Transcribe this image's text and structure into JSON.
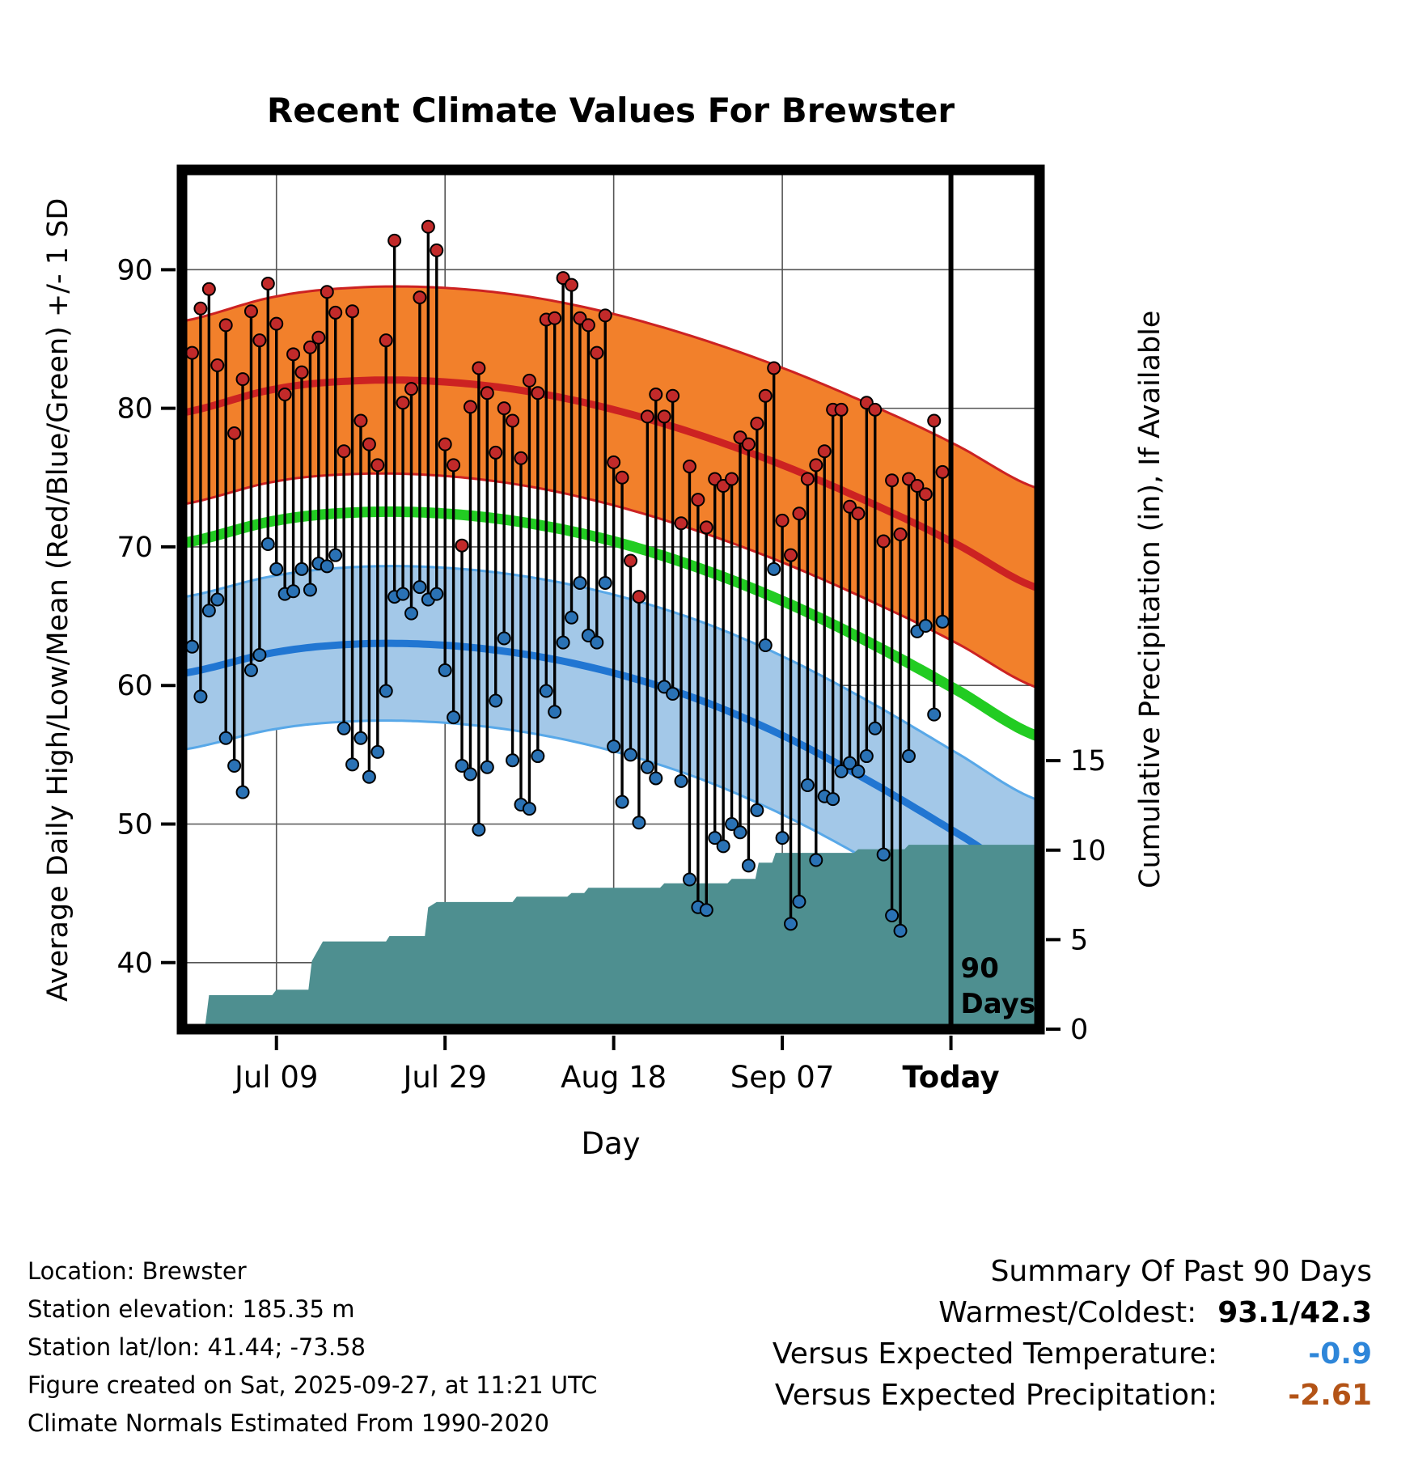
{
  "title": "Recent Climate Values For Brewster",
  "axes": {
    "x_label": "Day",
    "y_left_label": "Average Daily High/Low/Mean (Red/Blue/Green) +/- 1 SD",
    "y_right_label": "Cumulative Precipitation (in), If Available"
  },
  "chart_data": {
    "type": "line",
    "description": "Daily observed high/low temperature whiskers over climate-normal bands (high/low/mean +/- 1 SD) plus cumulative precipitation area for the past 90 days",
    "xlim": [
      -1.2,
      100.5
    ],
    "ylim_temp": [
      35.2,
      97.2
    ],
    "ylim_precip": [
      0,
      48
    ],
    "x_start_date": "2025-06-29",
    "x_ticks": [
      {
        "day": 10,
        "label": "Jul 09",
        "bold": false
      },
      {
        "day": 30,
        "label": "Jul 29",
        "bold": false
      },
      {
        "day": 50,
        "label": "Aug 18",
        "bold": false
      },
      {
        "day": 70,
        "label": "Sep 07",
        "bold": false
      },
      {
        "day": 90,
        "label": "Today",
        "bold": true
      }
    ],
    "y_ticks_temp": [
      90,
      80,
      70,
      60,
      50,
      40
    ],
    "y_ticks_precip": [
      0,
      5,
      10,
      15
    ],
    "marker": {
      "day": 90,
      "label_lines": [
        "90",
        "Days"
      ]
    },
    "normals": {
      "high": {
        "line_color": "#CC2222",
        "band_fill": "#F2802B",
        "band_edge": "#CC2222",
        "half_width": [
          6.6,
          7.2
        ],
        "knots": [
          [
            -2,
            79.6
          ],
          [
            10,
            81.4
          ],
          [
            20,
            82.0
          ],
          [
            30,
            81.9
          ],
          [
            40,
            81.2
          ],
          [
            50,
            79.9
          ],
          [
            60,
            78.1
          ],
          [
            70,
            75.9
          ],
          [
            80,
            73.3
          ],
          [
            90,
            70.4
          ],
          [
            101,
            66.9
          ]
        ]
      },
      "mean": {
        "line_color": "#22CC22",
        "knots": [
          [
            -2,
            70.2
          ],
          [
            10,
            71.9
          ],
          [
            20,
            72.5
          ],
          [
            30,
            72.4
          ],
          [
            40,
            71.7
          ],
          [
            50,
            70.4
          ],
          [
            60,
            68.5
          ],
          [
            70,
            66.1
          ],
          [
            80,
            63.2
          ],
          [
            90,
            59.9
          ],
          [
            101,
            56.2
          ]
        ]
      },
      "low": {
        "line_color": "#2176D2",
        "band_fill": "#A3C8E8",
        "band_edge": "#58A8E8",
        "half_width": [
          5.5,
          5.8
        ],
        "knots": [
          [
            -2,
            60.8
          ],
          [
            10,
            62.4
          ],
          [
            20,
            63.0
          ],
          [
            30,
            62.9
          ],
          [
            40,
            62.2
          ],
          [
            50,
            60.9
          ],
          [
            60,
            59.0
          ],
          [
            70,
            56.4
          ],
          [
            80,
            53.2
          ],
          [
            90,
            49.6
          ],
          [
            101,
            45.8
          ]
        ]
      }
    },
    "daily": {
      "highs": [
        84.0,
        87.2,
        88.6,
        83.1,
        86.0,
        78.2,
        82.1,
        87.0,
        84.9,
        89.0,
        86.1,
        81.0,
        83.9,
        82.6,
        84.4,
        85.1,
        88.4,
        86.9,
        76.9,
        87.0,
        79.1,
        77.4,
        75.9,
        84.9,
        92.1,
        80.4,
        81.4,
        88.0,
        93.1,
        91.4,
        77.4,
        75.9,
        70.1,
        80.1,
        82.9,
        81.1,
        76.8,
        80.0,
        79.1,
        76.4,
        82.0,
        81.1,
        86.4,
        86.5,
        89.4,
        88.9,
        86.5,
        86.0,
        84.0,
        86.7,
        76.1,
        75.0,
        69.0,
        66.4,
        79.4,
        81.0,
        79.4,
        80.9,
        71.7,
        75.8,
        73.4,
        71.4,
        74.9,
        74.4,
        74.9,
        77.9,
        77.4,
        78.9,
        80.9,
        82.9,
        71.9,
        69.4,
        72.4,
        74.9,
        75.9,
        76.9,
        79.9,
        79.9,
        72.9,
        72.4,
        80.4,
        79.9,
        70.4,
        74.8,
        70.9,
        74.9,
        74.4,
        73.8,
        79.1,
        75.4
      ],
      "lows": [
        62.8,
        59.2,
        65.4,
        66.2,
        56.2,
        54.2,
        52.3,
        61.1,
        62.2,
        70.2,
        68.4,
        66.6,
        66.8,
        68.4,
        66.9,
        68.8,
        68.6,
        69.4,
        56.9,
        54.3,
        56.2,
        53.4,
        55.2,
        59.6,
        66.4,
        66.6,
        65.2,
        67.1,
        66.2,
        66.6,
        61.1,
        57.7,
        54.2,
        53.6,
        49.6,
        54.1,
        58.9,
        63.4,
        54.6,
        51.4,
        51.1,
        54.9,
        59.6,
        58.1,
        63.1,
        64.9,
        67.4,
        63.6,
        63.1,
        67.4,
        55.6,
        51.6,
        55.0,
        50.1,
        54.1,
        53.3,
        59.9,
        59.4,
        53.1,
        46.0,
        44.0,
        43.8,
        49.0,
        48.4,
        50.0,
        49.4,
        47.0,
        51.0,
        62.9,
        68.4,
        49.0,
        42.8,
        44.4,
        52.8,
        47.4,
        52.0,
        51.8,
        53.8,
        54.4,
        53.8,
        54.9,
        56.9,
        47.8,
        43.4,
        42.3,
        54.9,
        63.9,
        64.3,
        57.9,
        64.6
      ]
    },
    "precip_cumulative": [
      [
        1.5,
        0.0
      ],
      [
        2.0,
        1.9
      ],
      [
        9.5,
        1.9
      ],
      [
        10.0,
        2.2
      ],
      [
        13.8,
        2.2
      ],
      [
        14.2,
        3.8
      ],
      [
        15.5,
        4.9
      ],
      [
        23.0,
        4.9
      ],
      [
        23.4,
        5.2
      ],
      [
        27.6,
        5.2
      ],
      [
        28.0,
        6.8
      ],
      [
        29.0,
        7.1
      ],
      [
        38.0,
        7.1
      ],
      [
        38.5,
        7.4
      ],
      [
        44.5,
        7.4
      ],
      [
        45.0,
        7.6
      ],
      [
        46.5,
        7.6
      ],
      [
        47.0,
        7.9
      ],
      [
        55.5,
        7.9
      ],
      [
        56.0,
        8.15
      ],
      [
        63.5,
        8.15
      ],
      [
        64.0,
        8.4
      ],
      [
        66.8,
        8.4
      ],
      [
        67.2,
        9.3
      ],
      [
        68.8,
        9.3
      ],
      [
        69.2,
        9.85
      ],
      [
        78.5,
        9.85
      ],
      [
        79.0,
        10.05
      ],
      [
        84.5,
        10.05
      ],
      [
        85.0,
        10.3
      ],
      [
        100.5,
        10.3
      ]
    ],
    "colors": {
      "grid": "#555555",
      "whisker": "#000000",
      "high_dot": "#C22A2A",
      "low_dot": "#2A72B5",
      "precip_fill": "#4E8F90",
      "frame": "#000000"
    }
  },
  "footer": {
    "lines": [
      "Location: Brewster",
      "Station elevation: 185.35 m",
      "Station lat/lon: 41.44; -73.58",
      "Figure created on Sat, 2025-09-27, at 11:21 UTC",
      "Climate Normals Estimated From 1990-2020"
    ]
  },
  "summary": {
    "heading": "Summary Of Past 90 Days",
    "rows": [
      {
        "label": "Warmest/Coldest:",
        "value": "93.1/42.3",
        "value_color": "#000000"
      },
      {
        "label": "Versus Expected Temperature:",
        "value": "-0.9",
        "value_color": "#2E86D9"
      },
      {
        "label": "Versus Expected Precipitation:",
        "value": "-2.61",
        "value_color": "#B35316"
      }
    ]
  }
}
